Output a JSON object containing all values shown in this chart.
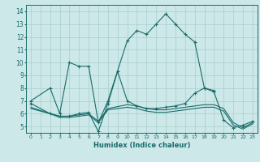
{
  "xlabel": "Humidex (Indice chaleur)",
  "bg_color": "#cce8e8",
  "grid_color": "#aacccc",
  "line_color": "#1a6b6b",
  "xlim": [
    -0.5,
    23.5
  ],
  "ylim": [
    4.5,
    14.5
  ],
  "xticks": [
    0,
    1,
    2,
    3,
    4,
    5,
    6,
    7,
    8,
    9,
    10,
    11,
    12,
    13,
    14,
    15,
    16,
    17,
    18,
    19,
    20,
    21,
    22,
    23
  ],
  "yticks": [
    5,
    6,
    7,
    8,
    9,
    10,
    11,
    12,
    13,
    14
  ],
  "lines": [
    {
      "x": [
        0,
        2,
        3,
        4,
        5,
        6,
        7,
        8,
        10,
        11,
        12,
        13,
        14,
        15,
        16,
        17,
        18,
        19
      ],
      "y": [
        7,
        8,
        6,
        10,
        9.7,
        9.7,
        5.3,
        7.0,
        11.7,
        12.5,
        12.2,
        13.0,
        13.8,
        13.0,
        12.2,
        11.6,
        8.0,
        7.8
      ],
      "marker": "+"
    },
    {
      "x": [
        0,
        2,
        3,
        4,
        5,
        6,
        7,
        8,
        9,
        10,
        11,
        12,
        13,
        14,
        15,
        16,
        17,
        18,
        19,
        20,
        21,
        22,
        23
      ],
      "y": [
        6.8,
        6.0,
        5.8,
        5.8,
        6.0,
        6.1,
        4.6,
        6.8,
        9.3,
        7.0,
        6.6,
        6.4,
        6.4,
        6.5,
        6.6,
        6.8,
        7.6,
        8.0,
        7.7,
        5.5,
        4.9,
        5.1,
        5.4
      ],
      "marker": "+"
    },
    {
      "x": [
        0,
        2,
        3,
        4,
        5,
        6,
        7,
        8,
        10,
        11,
        12,
        13,
        14,
        15,
        16,
        17,
        18,
        19,
        20,
        21,
        22,
        23
      ],
      "y": [
        6.5,
        6.0,
        5.8,
        5.8,
        5.9,
        6.0,
        5.4,
        6.4,
        6.7,
        6.6,
        6.4,
        6.3,
        6.3,
        6.4,
        6.5,
        6.6,
        6.7,
        6.7,
        6.4,
        5.3,
        4.9,
        5.3
      ],
      "marker": null
    },
    {
      "x": [
        0,
        2,
        3,
        4,
        5,
        6,
        7,
        8,
        10,
        11,
        12,
        13,
        14,
        15,
        16,
        17,
        18,
        19,
        20,
        21,
        22,
        23
      ],
      "y": [
        6.4,
        6.0,
        5.7,
        5.7,
        5.8,
        5.9,
        5.3,
        6.3,
        6.5,
        6.4,
        6.2,
        6.1,
        6.1,
        6.2,
        6.3,
        6.4,
        6.5,
        6.5,
        6.2,
        5.1,
        4.8,
        5.2
      ],
      "marker": null
    }
  ]
}
